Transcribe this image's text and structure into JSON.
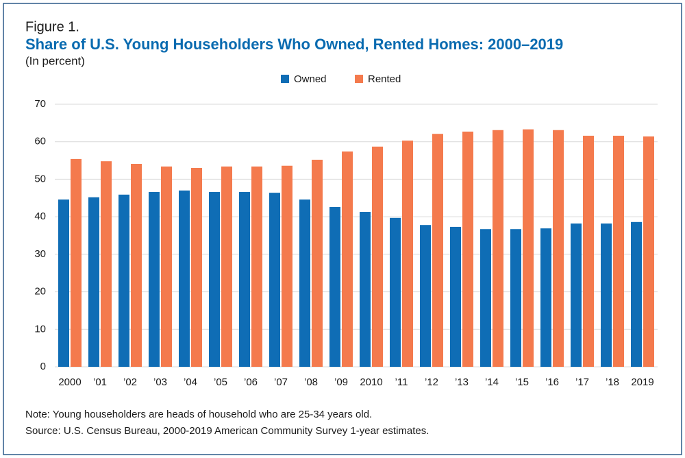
{
  "chart_data": {
    "type": "bar",
    "figure_label": "Figure 1.",
    "title": "Share of U.S. Young Householders Who Owned, Rented Homes: 2000–2019",
    "subtitle": "(In percent)",
    "categories": [
      "2000",
      "’01",
      "’02",
      "’03",
      "’04",
      "’05",
      "’06",
      "’07",
      "’08",
      "’09",
      "2010",
      "’11",
      "’12",
      "’13",
      "’14",
      "’15",
      "’16",
      "’17",
      "’18",
      "2019"
    ],
    "series": [
      {
        "name": "Owned",
        "color": "#0f6db5",
        "values": [
          44.6,
          45.2,
          45.9,
          46.6,
          47.0,
          46.6,
          46.6,
          46.4,
          44.6,
          42.6,
          41.3,
          39.7,
          37.8,
          37.3,
          36.7,
          36.7,
          36.9,
          38.2,
          38.2,
          38.6
        ]
      },
      {
        "name": "Rented",
        "color": "#f47a4d",
        "values": [
          55.4,
          54.8,
          54.1,
          53.4,
          53.0,
          53.4,
          53.4,
          53.6,
          55.2,
          57.4,
          58.7,
          60.3,
          62.1,
          62.7,
          63.1,
          63.3,
          63.1,
          61.6,
          61.6,
          61.4
        ]
      }
    ],
    "ylim": [
      0,
      70
    ],
    "yticks": [
      0,
      10,
      20,
      30,
      40,
      50,
      60,
      70
    ],
    "grid": true,
    "legend": "top",
    "note": "Note: Young householders are heads of household who are 25-34 years old.",
    "source": "Source: U.S. Census Bureau, 2000-2019 American Community Survey 1-year estimates."
  }
}
